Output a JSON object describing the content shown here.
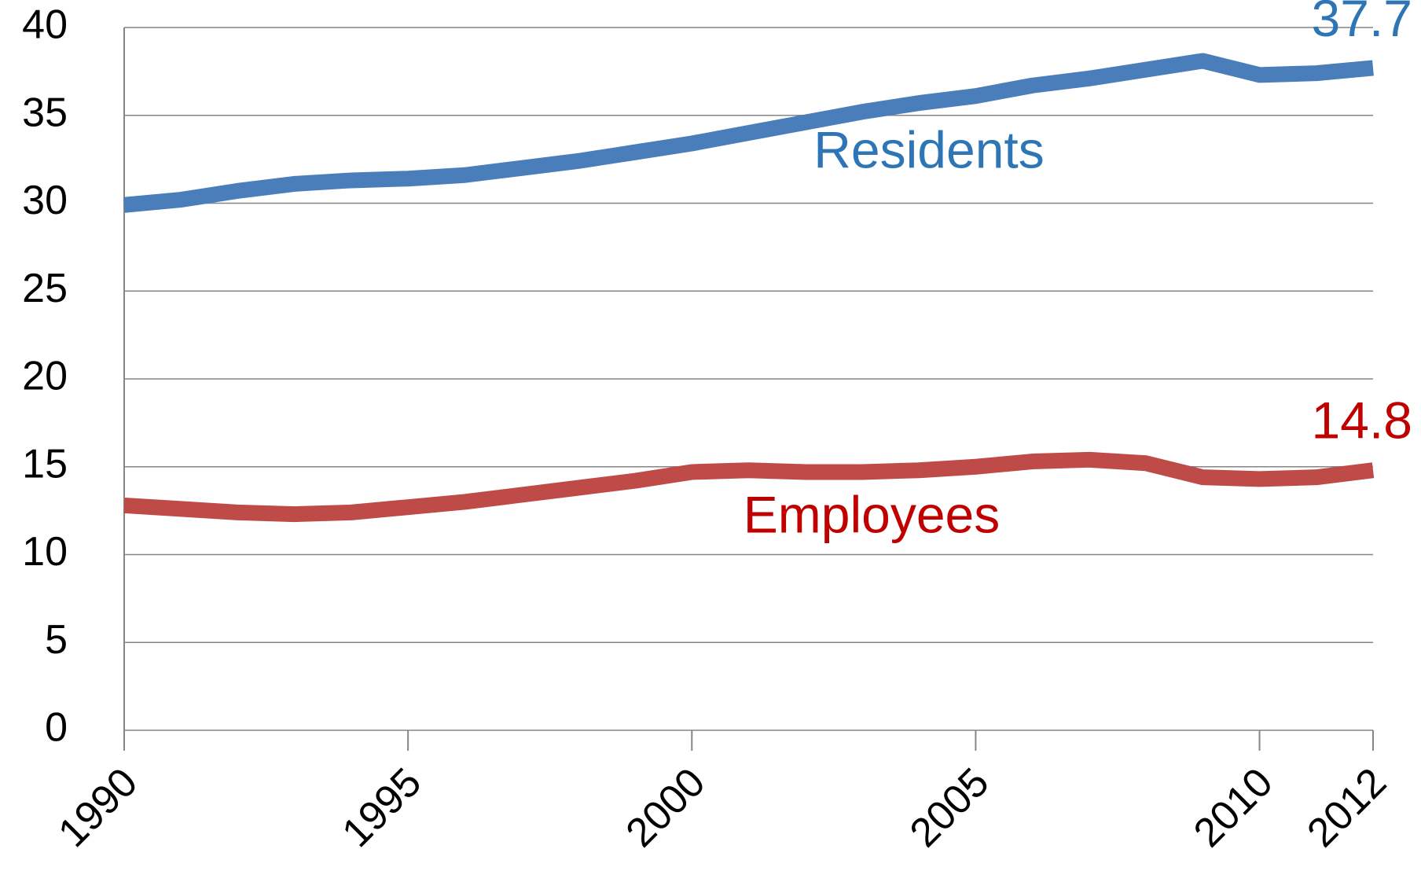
{
  "chart_data": {
    "type": "line",
    "x": [
      1990,
      1991,
      1992,
      1993,
      1994,
      1995,
      1996,
      1997,
      1998,
      1999,
      2000,
      2001,
      2002,
      2003,
      2004,
      2005,
      2006,
      2007,
      2008,
      2009,
      2010,
      2011,
      2012
    ],
    "series": [
      {
        "name": "Residents",
        "color": "#4a7ebb",
        "label_color": "#2e75b6",
        "values": [
          29.9,
          30.2,
          30.7,
          31.1,
          31.3,
          31.4,
          31.6,
          32.0,
          32.4,
          32.9,
          33.4,
          34.0,
          34.6,
          35.2,
          35.7,
          36.1,
          36.7,
          37.1,
          37.6,
          38.1,
          37.3,
          37.4,
          37.7
        ]
      },
      {
        "name": "Employees",
        "color": "#be4b48",
        "label_color": "#c00000",
        "values": [
          12.8,
          12.6,
          12.4,
          12.3,
          12.4,
          12.7,
          13.0,
          13.4,
          13.8,
          14.2,
          14.7,
          14.8,
          14.7,
          14.7,
          14.8,
          15.0,
          15.3,
          15.4,
          15.2,
          14.4,
          14.3,
          14.4,
          14.8
        ]
      }
    ],
    "xlim": [
      1990,
      2012
    ],
    "xticks": [
      1990,
      1995,
      2000,
      2005,
      2010,
      2012
    ],
    "ylim": [
      0,
      40
    ],
    "yticks": [
      0,
      5,
      10,
      15,
      20,
      25,
      30,
      35,
      40
    ],
    "grid": true
  }
}
